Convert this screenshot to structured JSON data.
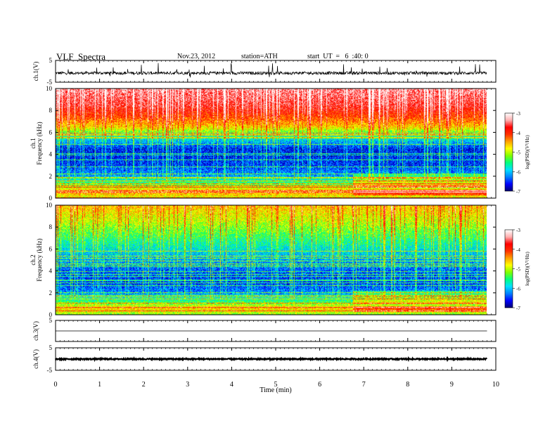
{
  "header": {
    "title": "VLF  Spectra",
    "date": "Nov.23, 2012",
    "station": "station=ATH",
    "start": "start  UT  =   6  :40: 0"
  },
  "chart_data": {
    "type": "heatmap",
    "title": "VLF  Spectra",
    "xlabel": "Time  (min)",
    "xlim": [
      0,
      10
    ],
    "x_ticks": [
      "0",
      "1",
      "2",
      "3",
      "4",
      "5",
      "6",
      "7",
      "8",
      "9",
      "10"
    ],
    "data_end_min": 9.8,
    "panels": [
      {
        "kind": "waveform",
        "ylabel": "ch.1(V)",
        "ylim": [
          -5,
          5
        ],
        "y_ticks": [
          "5",
          "-5"
        ],
        "baseline_v": -0.8,
        "noise_amplitude_v": 0.7,
        "spike_amplitude_v": 3.5
      },
      {
        "kind": "spectrogram",
        "ylabel": "ch.1\nFrequency  (kHz)",
        "ylabel_lines": [
          "ch.1",
          "Frequency  (kHz)"
        ],
        "ylim_khz": [
          0,
          10
        ],
        "y_ticks": [
          "0",
          "2",
          "4",
          "6",
          "8",
          "10"
        ],
        "colorbar": {
          "label": "log(PSD)(V²/Hz)",
          "range": [
            -7,
            -3
          ],
          "ticks": [
            "-3",
            "-4",
            "-5",
            "-6",
            "-7"
          ]
        },
        "intensity_profile": [
          {
            "f_khz": 10.0,
            "logpsd": -3.4
          },
          {
            "f_khz": 8.5,
            "logpsd": -3.7
          },
          {
            "f_khz": 7.5,
            "logpsd": -4.1
          },
          {
            "f_khz": 6.5,
            "logpsd": -4.7
          },
          {
            "f_khz": 5.8,
            "logpsd": -5.6
          },
          {
            "f_khz": 4.5,
            "logpsd": -6.6
          },
          {
            "f_khz": 3.0,
            "logpsd": -6.5
          },
          {
            "f_khz": 2.0,
            "logpsd": -6.1
          },
          {
            "f_khz": 1.2,
            "logpsd": -5.2
          },
          {
            "f_khz": 0.6,
            "logpsd": -4.4
          },
          {
            "f_khz": 0.0,
            "logpsd": -5.0
          }
        ]
      },
      {
        "kind": "spectrogram",
        "ylabel": "ch.2\nFrequency  (kHz)",
        "ylabel_lines": [
          "ch.2",
          "Frequency  (kHz)"
        ],
        "ylim_khz": [
          0,
          10
        ],
        "y_ticks": [
          "0",
          "2",
          "4",
          "6",
          "8",
          "10"
        ],
        "colorbar": {
          "label": "log(PSD)(V²/Hz)",
          "range": [
            -7,
            -3
          ],
          "ticks": [
            "-3",
            "-4",
            "-5",
            "-6",
            "-7"
          ]
        },
        "intensity_profile": [
          {
            "f_khz": 10.0,
            "logpsd": -4.6
          },
          {
            "f_khz": 8.5,
            "logpsd": -5.0
          },
          {
            "f_khz": 7.0,
            "logpsd": -5.5
          },
          {
            "f_khz": 5.5,
            "logpsd": -6.0
          },
          {
            "f_khz": 4.0,
            "logpsd": -6.4
          },
          {
            "f_khz": 3.0,
            "logpsd": -6.5
          },
          {
            "f_khz": 2.0,
            "logpsd": -6.2
          },
          {
            "f_khz": 1.2,
            "logpsd": -5.4
          },
          {
            "f_khz": 0.6,
            "logpsd": -4.6
          },
          {
            "f_khz": 0.0,
            "logpsd": -5.2
          }
        ]
      },
      {
        "kind": "waveform",
        "ylabel": "ch.3(V)",
        "ylim": [
          -5,
          5
        ],
        "y_ticks": [
          "5"
        ],
        "baseline_v": 0.0,
        "noise_amplitude_v": 0.0,
        "spike_amplitude_v": 0.0
      },
      {
        "kind": "waveform",
        "ylabel": "ch.4(V)",
        "ylim": [
          -5,
          5
        ],
        "y_ticks": [
          "5",
          "-5"
        ],
        "baseline_v": 0.0,
        "noise_amplitude_v": 0.25,
        "spike_amplitude_v": 0.0
      }
    ],
    "colormap": [
      "#000070",
      "#0000ff",
      "#0080ff",
      "#00e0ff",
      "#00ff80",
      "#80ff00",
      "#ffff00",
      "#ffa000",
      "#ff3000",
      "#ff0000",
      "#ffb0b0",
      "#ffffff"
    ]
  }
}
